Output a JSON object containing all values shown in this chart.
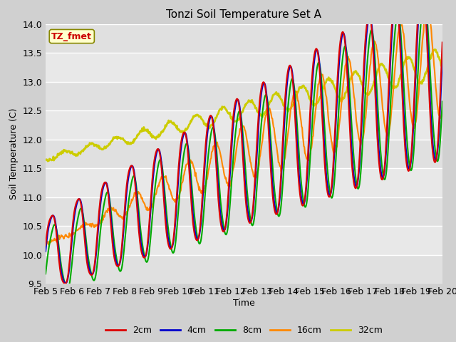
{
  "title": "Tonzi Soil Temperature Set A",
  "xlabel": "Time",
  "ylabel": "Soil Temperature (C)",
  "ylim": [
    9.5,
    14.0
  ],
  "xlim": [
    0,
    15
  ],
  "annotation": "TZ_fmet",
  "annotation_color": "#cc0000",
  "annotation_bg": "#ffffcc",
  "annotation_border": "#888800",
  "fig_bg": "#d0d0d0",
  "plot_bg": "#e8e8e8",
  "series": {
    "2cm": {
      "color": "#dd0000",
      "lw": 1.5
    },
    "4cm": {
      "color": "#0000cc",
      "lw": 1.5
    },
    "8cm": {
      "color": "#00aa00",
      "lw": 1.5
    },
    "16cm": {
      "color": "#ff8800",
      "lw": 1.5
    },
    "32cm": {
      "color": "#cccc00",
      "lw": 2.0
    }
  },
  "x_ticks": [
    "Feb 5",
    "Feb 6",
    "Feb 7",
    "Feb 8",
    "Feb 9",
    "Feb 10",
    "Feb 11",
    "Feb 12",
    "Feb 13",
    "Feb 14",
    "Feb 15",
    "Feb 16",
    "Feb 17",
    "Feb 18",
    "Feb 19",
    "Feb 20"
  ],
  "y_ticks": [
    9.5,
    10.0,
    10.5,
    11.0,
    11.5,
    12.0,
    12.5,
    13.0,
    13.5,
    14.0
  ],
  "n_points": 720,
  "total_days": 15
}
